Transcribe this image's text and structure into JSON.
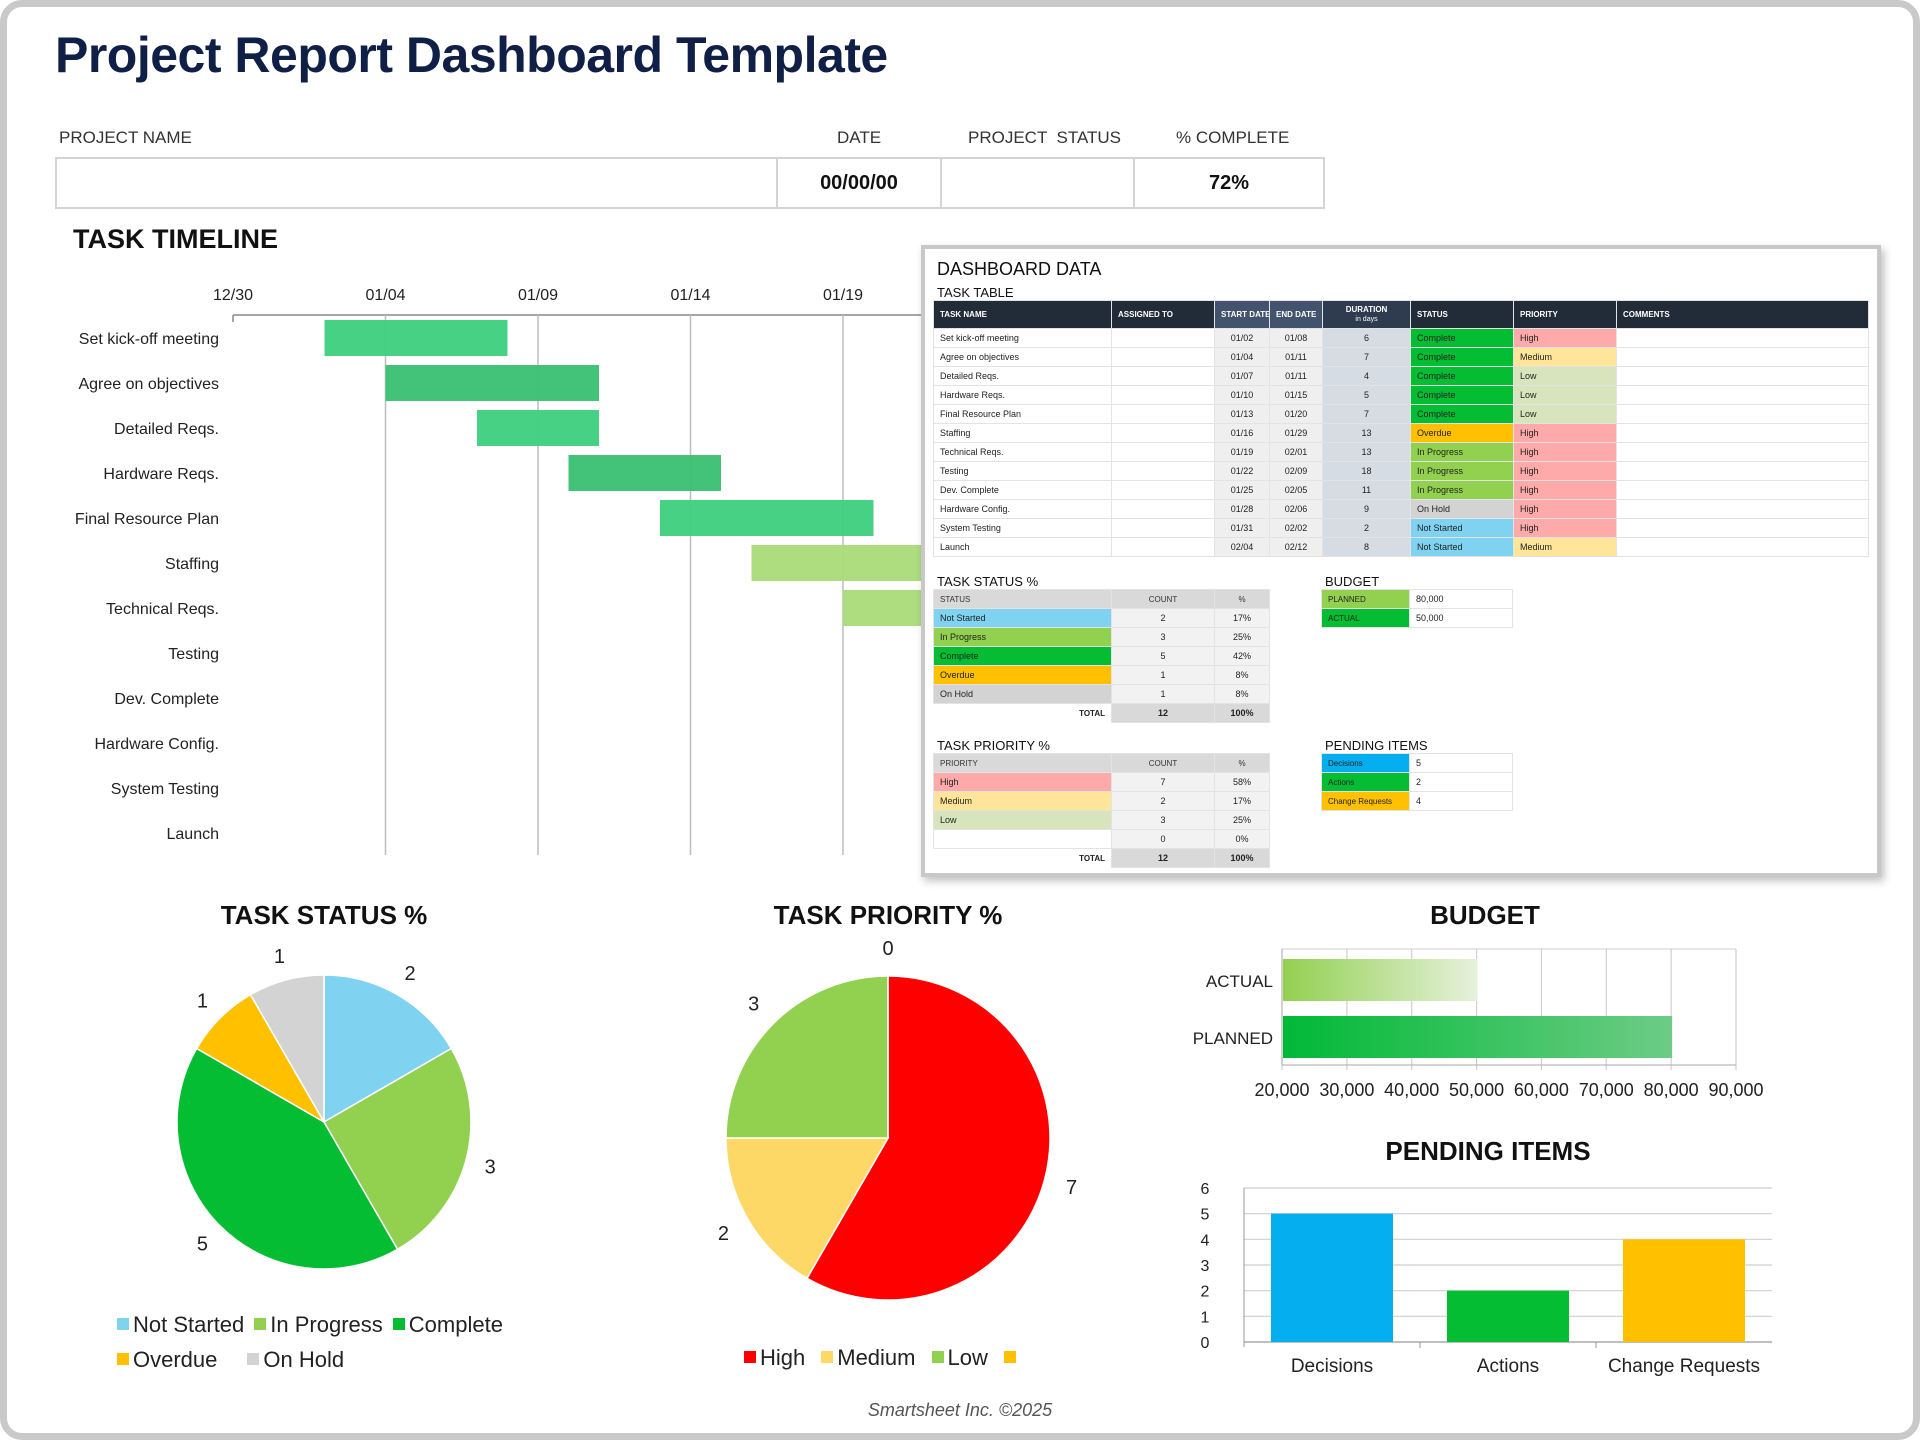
{
  "title": "Project Report Dashboard Template",
  "header": {
    "labels": {
      "project_name": "PROJECT NAME",
      "date": "DATE",
      "project_status": "PROJECT  STATUS",
      "percent_complete": "% COMPLETE"
    },
    "values": {
      "project_name": "",
      "date": "00/00/00",
      "project_status": "",
      "percent_complete": "72%"
    }
  },
  "timeline": {
    "title": "TASK TIMELINE"
  },
  "colors": {
    "status": {
      "Not Started": "#7fd3f1",
      "In Progress": "#92d050",
      "Complete": "#05bd33",
      "Overdue": "#ffc000",
      "On Hold": "#d3d3d3"
    },
    "priority": {
      "High": "#ffaaaa",
      "Medium": "#ffe599",
      "Low": "#d8e4bc",
      "": "#ffffff"
    },
    "priority_chart": {
      "High": "#ff0000",
      "Medium": "#fdd866",
      "Low": "#92d050",
      "": "#ffc000"
    },
    "pending": {
      "Decisions": "#05aeef",
      "Actions": "#05bd33",
      "Change Requests": "#ffc000"
    },
    "budget": {
      "PLANNED": "#92d050",
      "ACTUAL": "#05bd33"
    },
    "gantt_complete": [
      "#3dcf7e",
      "#39bf72"
    ],
    "gantt_active": "#a9db78"
  },
  "dashboard_data": {
    "title": "DASHBOARD DATA",
    "task_table": {
      "title": "TASK TABLE",
      "headers": [
        "TASK NAME",
        "ASSIGNED TO",
        "START DATE",
        "END DATE",
        "DURATION",
        "STATUS",
        "PRIORITY",
        "COMMENTS"
      ],
      "duration_sub": "in days",
      "rows": [
        {
          "task": "Set kick-off meeting",
          "assigned": "",
          "start": "01/02",
          "end": "01/08",
          "duration": "6",
          "status": "Complete",
          "priority": "High",
          "comments": ""
        },
        {
          "task": "Agree on objectives",
          "assigned": "",
          "start": "01/04",
          "end": "01/11",
          "duration": "7",
          "status": "Complete",
          "priority": "Medium",
          "comments": ""
        },
        {
          "task": "Detailed Reqs.",
          "assigned": "",
          "start": "01/07",
          "end": "01/11",
          "duration": "4",
          "status": "Complete",
          "priority": "Low",
          "comments": ""
        },
        {
          "task": "Hardware Reqs.",
          "assigned": "",
          "start": "01/10",
          "end": "01/15",
          "duration": "5",
          "status": "Complete",
          "priority": "Low",
          "comments": ""
        },
        {
          "task": "Final Resource Plan",
          "assigned": "",
          "start": "01/13",
          "end": "01/20",
          "duration": "7",
          "status": "Complete",
          "priority": "Low",
          "comments": ""
        },
        {
          "task": "Staffing",
          "assigned": "",
          "start": "01/16",
          "end": "01/29",
          "duration": "13",
          "status": "Overdue",
          "priority": "High",
          "comments": ""
        },
        {
          "task": "Technical Reqs.",
          "assigned": "",
          "start": "01/19",
          "end": "02/01",
          "duration": "13",
          "status": "In Progress",
          "priority": "High",
          "comments": ""
        },
        {
          "task": "Testing",
          "assigned": "",
          "start": "01/22",
          "end": "02/09",
          "duration": "18",
          "status": "In Progress",
          "priority": "High",
          "comments": ""
        },
        {
          "task": "Dev. Complete",
          "assigned": "",
          "start": "01/25",
          "end": "02/05",
          "duration": "11",
          "status": "In Progress",
          "priority": "High",
          "comments": ""
        },
        {
          "task": "Hardware Config.",
          "assigned": "",
          "start": "01/28",
          "end": "02/06",
          "duration": "9",
          "status": "On Hold",
          "priority": "High",
          "comments": ""
        },
        {
          "task": "System Testing",
          "assigned": "",
          "start": "01/31",
          "end": "02/02",
          "duration": "2",
          "status": "Not Started",
          "priority": "High",
          "comments": ""
        },
        {
          "task": "Launch",
          "assigned": "",
          "start": "02/04",
          "end": "02/12",
          "duration": "8",
          "status": "Not Started",
          "priority": "Medium",
          "comments": ""
        }
      ]
    },
    "task_status": {
      "title": "TASK STATUS %",
      "headers": [
        "STATUS",
        "COUNT",
        "%"
      ],
      "rows": [
        {
          "label": "Not Started",
          "count": "2",
          "pct": "17%"
        },
        {
          "label": "In Progress",
          "count": "3",
          "pct": "25%"
        },
        {
          "label": "Complete",
          "count": "5",
          "pct": "42%"
        },
        {
          "label": "Overdue",
          "count": "1",
          "pct": "8%"
        },
        {
          "label": "On Hold",
          "count": "1",
          "pct": "8%"
        }
      ],
      "total": {
        "label": "TOTAL",
        "count": "12",
        "pct": "100%"
      }
    },
    "task_priority": {
      "title": "TASK PRIORITY %",
      "headers": [
        "PRIORITY",
        "COUNT",
        "%"
      ],
      "rows": [
        {
          "label": "High",
          "count": "7",
          "pct": "58%"
        },
        {
          "label": "Medium",
          "count": "2",
          "pct": "17%"
        },
        {
          "label": "Low",
          "count": "3",
          "pct": "25%"
        },
        {
          "label": "",
          "count": "0",
          "pct": "0%"
        }
      ],
      "total": {
        "label": "TOTAL",
        "count": "12",
        "pct": "100%"
      }
    },
    "budget": {
      "title": "BUDGET",
      "rows": [
        {
          "label": "PLANNED",
          "value": "80,000"
        },
        {
          "label": "ACTUAL",
          "value": "50,000"
        }
      ]
    },
    "pending_items": {
      "title": "PENDING ITEMS",
      "rows": [
        {
          "label": "Decisions",
          "value": "5"
        },
        {
          "label": "Actions",
          "value": "2"
        },
        {
          "label": "Change Requests",
          "value": "4"
        }
      ]
    }
  },
  "chart_data": [
    {
      "type": "gantt",
      "title": "TASK TIMELINE",
      "x_ticks": [
        "12/30",
        "01/04",
        "01/09",
        "01/14",
        "01/19"
      ],
      "grid": true,
      "tasks": [
        {
          "name": "Set kick-off meeting",
          "start": "01/02",
          "end": "01/08",
          "status": "Complete"
        },
        {
          "name": "Agree on objectives",
          "start": "01/04",
          "end": "01/11",
          "status": "Complete"
        },
        {
          "name": "Detailed Reqs.",
          "start": "01/07",
          "end": "01/11",
          "status": "Complete"
        },
        {
          "name": "Hardware Reqs.",
          "start": "01/10",
          "end": "01/15",
          "status": "Complete"
        },
        {
          "name": "Final Resource Plan",
          "start": "01/13",
          "end": "01/20",
          "status": "Complete"
        },
        {
          "name": "Staffing",
          "start": "01/16",
          "end": "01/29",
          "status": "Overdue"
        },
        {
          "name": "Technical Reqs.",
          "start": "01/19",
          "end": "02/01",
          "status": "In Progress"
        },
        {
          "name": "Testing",
          "start": "01/22",
          "end": "02/09",
          "status": "In Progress"
        },
        {
          "name": "Dev. Complete",
          "start": "01/25",
          "end": "02/05",
          "status": "In Progress"
        },
        {
          "name": "Hardware Config.",
          "start": "01/28",
          "end": "02/06",
          "status": "On Hold"
        },
        {
          "name": "System Testing",
          "start": "01/31",
          "end": "02/02",
          "status": "Not Started"
        },
        {
          "name": "Launch",
          "start": "02/04",
          "end": "02/12",
          "status": "Not Started"
        }
      ]
    },
    {
      "type": "pie",
      "title": "TASK STATUS %",
      "categories": [
        "Not Started",
        "In Progress",
        "Complete",
        "Overdue",
        "On Hold"
      ],
      "values": [
        2,
        3,
        5,
        1,
        1
      ],
      "data_labels": [
        "2",
        "3",
        "5",
        "1",
        "1"
      ],
      "legend": "bottom"
    },
    {
      "type": "pie",
      "title": "TASK PRIORITY %",
      "categories": [
        "High",
        "Medium",
        "Low",
        ""
      ],
      "values": [
        7,
        2,
        3,
        0
      ],
      "data_labels": [
        "7",
        "2",
        "3",
        "0"
      ],
      "legend": "bottom"
    },
    {
      "type": "bar",
      "orientation": "horizontal",
      "title": "BUDGET",
      "categories": [
        "ACTUAL",
        "PLANNED"
      ],
      "values": [
        50000,
        80000
      ],
      "xlim": [
        20000,
        90000
      ],
      "x_ticks": [
        "20,000",
        "30,000",
        "40,000",
        "50,000",
        "60,000",
        "70,000",
        "80,000",
        "90,000"
      ],
      "grid": true
    },
    {
      "type": "bar",
      "title": "PENDING ITEMS",
      "categories": [
        "Decisions",
        "Actions",
        "Change Requests"
      ],
      "values": [
        5,
        2,
        4
      ],
      "ylim": [
        0,
        6
      ],
      "y_ticks": [
        "0",
        "1",
        "2",
        "3",
        "4",
        "5",
        "6"
      ],
      "grid": true
    }
  ],
  "footer": "Smartsheet Inc. ©2025"
}
